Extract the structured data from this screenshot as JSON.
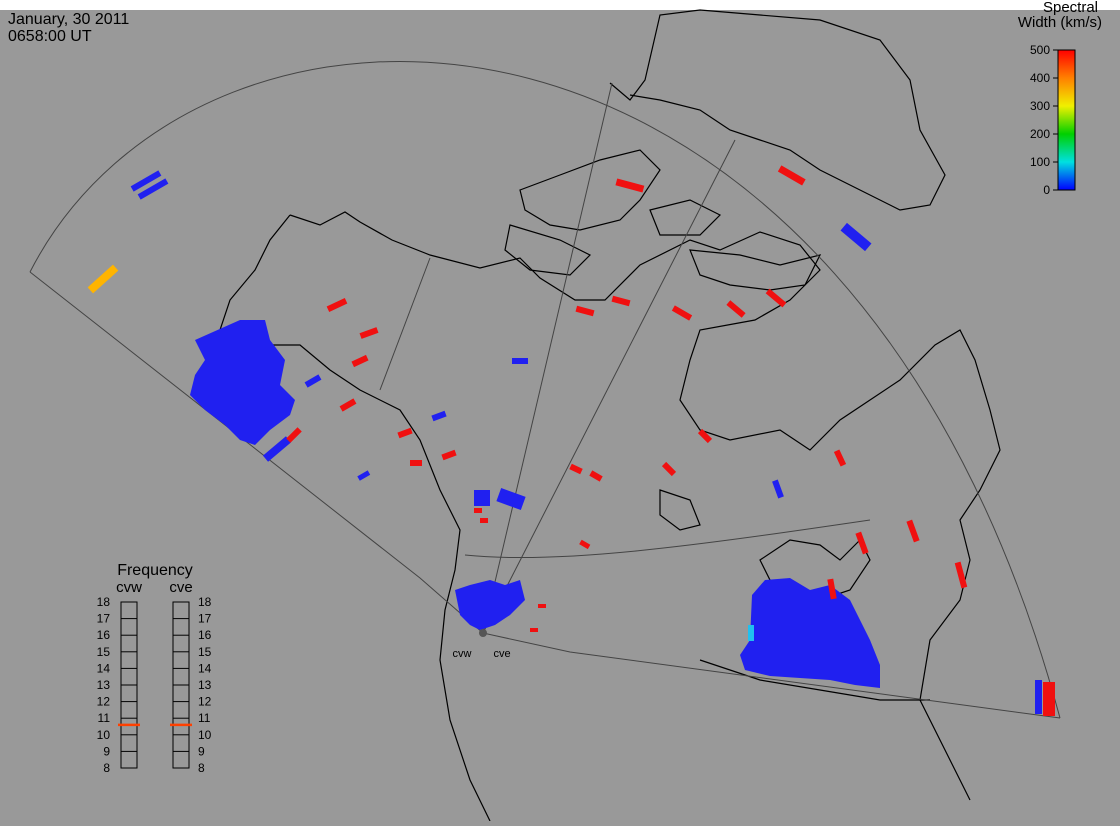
{
  "header": {
    "date": "January, 30 2011",
    "time": "0658:00 UT"
  },
  "colorbar": {
    "title": [
      "Spectral",
      "Width (km/s)"
    ],
    "ticks": [
      0,
      100,
      200,
      300,
      400,
      500
    ],
    "range": [
      0,
      500
    ]
  },
  "frequency": {
    "title": "Frequency",
    "scale": [
      8,
      9,
      10,
      11,
      12,
      13,
      14,
      15,
      16,
      17,
      18
    ],
    "range": [
      8,
      18
    ],
    "radars": [
      {
        "name": "cvw",
        "value": 10.6
      },
      {
        "name": "cve",
        "value": 10.6
      }
    ]
  },
  "stations": [
    "cvw",
    "cve"
  ]
}
